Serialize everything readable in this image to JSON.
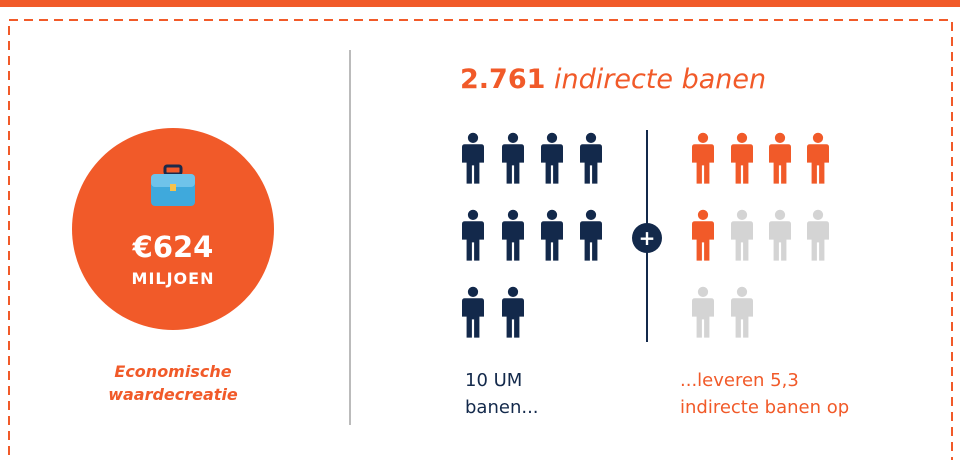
{
  "value_badge": {
    "amount": "€624",
    "unit": "MILJOEN",
    "caption": [
      "Economische",
      "waardecreatie"
    ]
  },
  "headline": {
    "number": "2.761",
    "text": "indirecte banen"
  },
  "plus": "+",
  "left_caption": [
    "10 UM",
    "banen..."
  ],
  "right_caption": [
    "...leveren 5,3",
    "indirecte banen op"
  ]
}
